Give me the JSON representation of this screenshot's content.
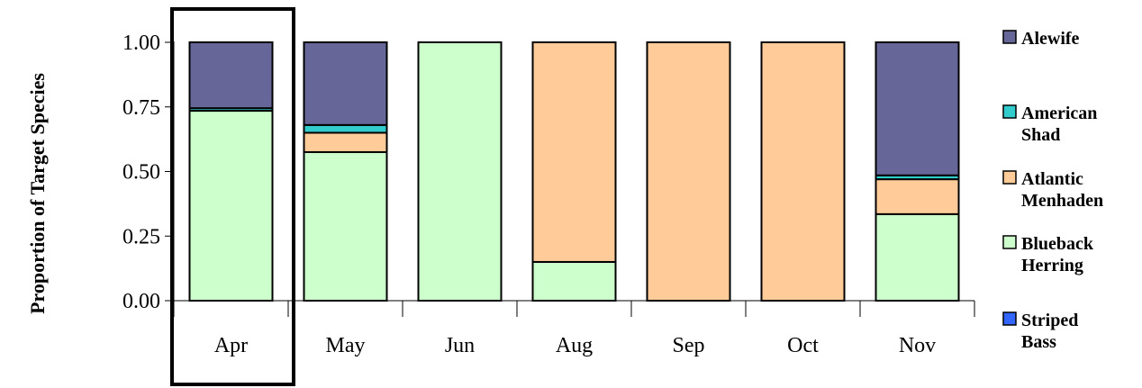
{
  "chart_data": {
    "type": "bar",
    "stacked": true,
    "categories": [
      "Apr",
      "May",
      "Jun",
      "Aug",
      "Sep",
      "Oct",
      "Nov"
    ],
    "ylabel": "Proportion of Target Species",
    "xlabel": "",
    "ylim": [
      0,
      1
    ],
    "yticks": [
      "0.00",
      "0.25",
      "0.50",
      "0.75",
      "1.00"
    ],
    "grid": false,
    "legend_position": "right",
    "highlighted_category": "Apr",
    "series": [
      {
        "name": "Striped Bass",
        "legend_lines": [
          "Striped",
          "Bass"
        ],
        "color": "#3366ff",
        "values": [
          0.0,
          0.0,
          0.0,
          0.0,
          0.0,
          0.0,
          0.0
        ]
      },
      {
        "name": "Blueback Herring",
        "legend_lines": [
          "Blueback",
          "Herring"
        ],
        "color": "#ccffcc",
        "values": [
          0.735,
          0.575,
          1.0,
          0.15,
          0.0,
          0.0,
          0.335
        ]
      },
      {
        "name": "Atlantic Menhaden",
        "legend_lines": [
          "Atlantic",
          "Menhaden"
        ],
        "color": "#ffcc99",
        "values": [
          0.0,
          0.075,
          0.0,
          0.85,
          1.0,
          1.0,
          0.135
        ]
      },
      {
        "name": "American Shad",
        "legend_lines": [
          "American",
          "Shad"
        ],
        "color": "#33cccc",
        "values": [
          0.01,
          0.03,
          0.0,
          0.0,
          0.0,
          0.0,
          0.015
        ]
      },
      {
        "name": "Alewife",
        "legend_lines": [
          "Alewife"
        ],
        "color": "#666699",
        "values": [
          0.255,
          0.32,
          0.0,
          0.0,
          0.0,
          0.0,
          0.515
        ]
      }
    ]
  }
}
